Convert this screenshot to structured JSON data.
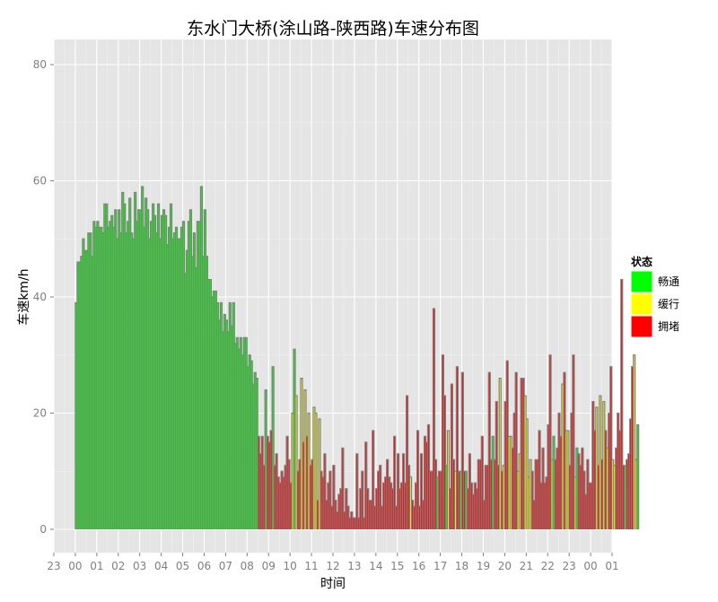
{
  "chart_data": {
    "type": "bar",
    "title": "东水门大桥(涂山路-陕西路)车速分布图",
    "xlabel": "时间",
    "ylabel": "车速km/h",
    "ylim": [
      0,
      80
    ],
    "xlim": [
      -1,
      25
    ],
    "y_ticks": [
      "0",
      "20",
      "40",
      "60",
      "80"
    ],
    "x_ticks": [
      "23",
      "00",
      "01",
      "02",
      "03",
      "04",
      "05",
      "06",
      "07",
      "08",
      "09",
      "10",
      "11",
      "12",
      "13",
      "14",
      "15",
      "16",
      "17",
      "18",
      "19",
      "20",
      "21",
      "22",
      "23",
      "00",
      "01"
    ],
    "grid": true,
    "legend": {
      "title": "状态",
      "position": "right",
      "entries": [
        {
          "label": "畅通",
          "color": "#00ff00"
        },
        {
          "label": "缓行",
          "color": "#ffff00"
        },
        {
          "label": "拥堵",
          "color": "#ff0000"
        }
      ]
    },
    "outline_color": "#808080",
    "bar_interval_hours": 0.0833,
    "speeds": [
      39,
      46,
      46,
      47,
      50,
      48,
      48,
      51,
      51,
      47,
      53,
      52,
      53,
      52,
      52,
      51,
      56,
      56,
      52,
      53,
      54,
      52,
      55,
      50,
      55,
      51,
      58,
      56,
      51,
      53,
      57,
      51,
      50,
      58,
      53,
      55,
      55,
      59,
      52,
      57,
      55,
      50,
      53,
      56,
      54,
      51,
      56,
      50,
      54,
      55,
      54,
      49,
      52,
      56,
      50,
      51,
      52,
      50,
      50,
      52,
      53,
      44,
      48,
      53,
      55,
      47,
      51,
      45,
      53,
      53,
      59,
      47,
      55,
      47,
      43,
      43,
      40,
      41,
      41,
      39,
      36,
      39,
      34,
      37,
      36,
      34,
      39,
      35,
      39,
      32,
      33,
      31,
      33,
      30,
      33,
      33,
      28,
      30,
      29,
      25,
      27,
      26,
      16,
      13,
      16,
      11,
      24,
      16,
      15,
      17,
      28,
      11,
      13,
      9,
      8,
      10,
      9,
      11,
      16,
      12,
      8,
      20,
      31,
      23,
      10,
      12,
      26,
      15,
      24,
      16,
      20,
      11,
      12,
      21,
      20,
      5,
      19,
      10,
      9,
      13,
      5,
      8,
      10,
      4,
      11,
      5,
      3,
      6,
      7,
      14,
      3,
      7,
      4,
      2,
      3,
      2,
      2,
      13,
      2,
      7,
      10,
      2,
      15,
      7,
      5,
      5,
      17,
      4,
      7,
      10,
      11,
      4,
      8,
      9,
      12,
      9,
      8,
      7,
      16,
      4,
      13,
      7,
      8,
      13,
      8,
      23,
      11,
      9,
      5,
      4,
      8,
      17,
      4,
      13,
      5,
      16,
      15,
      18,
      10,
      10,
      38,
      12,
      9,
      10,
      10,
      30,
      23,
      11,
      17,
      7,
      25,
      12,
      10,
      28,
      10,
      10,
      27,
      10,
      10,
      7,
      13,
      8,
      6,
      8,
      7,
      12,
      12,
      16,
      5,
      11,
      11,
      27,
      12,
      16,
      12,
      22,
      11,
      26,
      10,
      11,
      22,
      29,
      16,
      16,
      14,
      20,
      27,
      10,
      13,
      26,
      26,
      23,
      19,
      9,
      12,
      10,
      5,
      12,
      12,
      17,
      8,
      14,
      8,
      9,
      18,
      30,
      12,
      16,
      12,
      14,
      20,
      16,
      25,
      27,
      17,
      17,
      11,
      20,
      30,
      9,
      14,
      13,
      11,
      14,
      10,
      6,
      12,
      8,
      8,
      22,
      17,
      21,
      11,
      23,
      12,
      22,
      17,
      14,
      20,
      28,
      12,
      11,
      14,
      20,
      17,
      43,
      11,
      11,
      12,
      13,
      19,
      28,
      30,
      12,
      18
    ],
    "statuses": [
      "G",
      "G",
      "G",
      "G",
      "G",
      "G",
      "G",
      "G",
      "G",
      "G",
      "G",
      "G",
      "G",
      "G",
      "G",
      "G",
      "G",
      "G",
      "G",
      "G",
      "G",
      "G",
      "G",
      "G",
      "G",
      "G",
      "G",
      "G",
      "G",
      "G",
      "G",
      "G",
      "G",
      "G",
      "G",
      "G",
      "G",
      "G",
      "G",
      "G",
      "G",
      "G",
      "G",
      "G",
      "G",
      "G",
      "G",
      "G",
      "G",
      "G",
      "G",
      "G",
      "G",
      "G",
      "G",
      "G",
      "G",
      "G",
      "G",
      "G",
      "G",
      "G",
      "G",
      "G",
      "G",
      "G",
      "G",
      "G",
      "G",
      "G",
      "G",
      "G",
      "G",
      "G",
      "G",
      "G",
      "G",
      "G",
      "G",
      "G",
      "G",
      "G",
      "G",
      "G",
      "G",
      "G",
      "G",
      "G",
      "G",
      "G",
      "G",
      "G",
      "G",
      "G",
      "G",
      "G",
      "G",
      "G",
      "G",
      "G",
      "G",
      "G",
      "R",
      "R",
      "R",
      "R",
      "G",
      "R",
      "R",
      "R",
      "G",
      "R",
      "R",
      "R",
      "R",
      "R",
      "R",
      "R",
      "R",
      "R",
      "R",
      "Y",
      "G",
      "Y",
      "R",
      "R",
      "Y",
      "R",
      "Y",
      "R",
      "Y",
      "R",
      "R",
      "Y",
      "Y",
      "R",
      "Y",
      "R",
      "R",
      "R",
      "R",
      "R",
      "R",
      "R",
      "R",
      "R",
      "R",
      "R",
      "R",
      "R",
      "R",
      "R",
      "R",
      "R",
      "R",
      "R",
      "R",
      "R",
      "R",
      "R",
      "R",
      "R",
      "R",
      "R",
      "R",
      "R",
      "R",
      "R",
      "R",
      "R",
      "R",
      "R",
      "R",
      "R",
      "R",
      "R",
      "R",
      "R",
      "R",
      "R",
      "R",
      "R",
      "R",
      "R",
      "R",
      "R",
      "R",
      "Y",
      "R",
      "R",
      "R",
      "R",
      "R",
      "R",
      "R",
      "R",
      "R",
      "R",
      "R",
      "R",
      "R",
      "R",
      "G",
      "R",
      "R",
      "R",
      "R",
      "G",
      "Y",
      "R",
      "R",
      "R",
      "Y",
      "R",
      "R",
      "G",
      "R",
      "R",
      "G",
      "R",
      "R",
      "R",
      "R",
      "R",
      "R",
      "R",
      "R",
      "R",
      "R",
      "R",
      "R",
      "R",
      "R",
      "G",
      "R",
      "R",
      "R",
      "Y",
      "R",
      "Y",
      "R",
      "R",
      "Y",
      "Y",
      "R",
      "R",
      "R",
      "Y",
      "Y",
      "R",
      "R",
      "Y",
      "Y",
      "Y",
      "Y",
      "R",
      "R",
      "R",
      "R",
      "R",
      "R",
      "R",
      "R",
      "R",
      "R",
      "R",
      "Y",
      "G",
      "R",
      "R",
      "R",
      "R",
      "Y",
      "R",
      "Y",
      "Y",
      "R",
      "R",
      "R",
      "Y",
      "G",
      "R",
      "R",
      "R",
      "R",
      "R",
      "R",
      "R",
      "R",
      "R",
      "R",
      "Y",
      "R",
      "Y",
      "R",
      "Y",
      "R",
      "Y",
      "R",
      "R",
      "Y",
      "Y",
      "R",
      "R",
      "R",
      "R",
      "R",
      "G",
      "R",
      "R",
      "R",
      "R",
      "Y",
      "Y",
      "G",
      "R",
      "R"
    ]
  }
}
